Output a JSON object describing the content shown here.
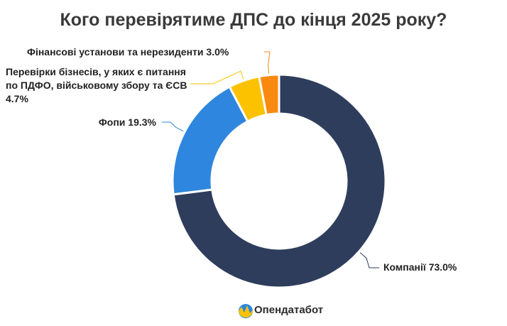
{
  "chart_data": {
    "type": "donut",
    "title": "Кого перевірятиме ДПС до кінця 2025 року?",
    "categories": [
      "Компанії",
      "Фопи",
      "Перевірки бізнесів, у яких є питання по ПДФО, військовому збору та ЄСВ",
      "Фінансові установи та нерезиденти"
    ],
    "values": [
      73.0,
      19.3,
      4.7,
      3.0
    ],
    "value_labels": [
      "73.0%",
      "19.3%",
      "4.7%",
      "3.0%"
    ],
    "colors": [
      "#2f3d5c",
      "#2e86de",
      "#fcc200",
      "#fa8a0f"
    ]
  },
  "brand": "Опендатабот"
}
